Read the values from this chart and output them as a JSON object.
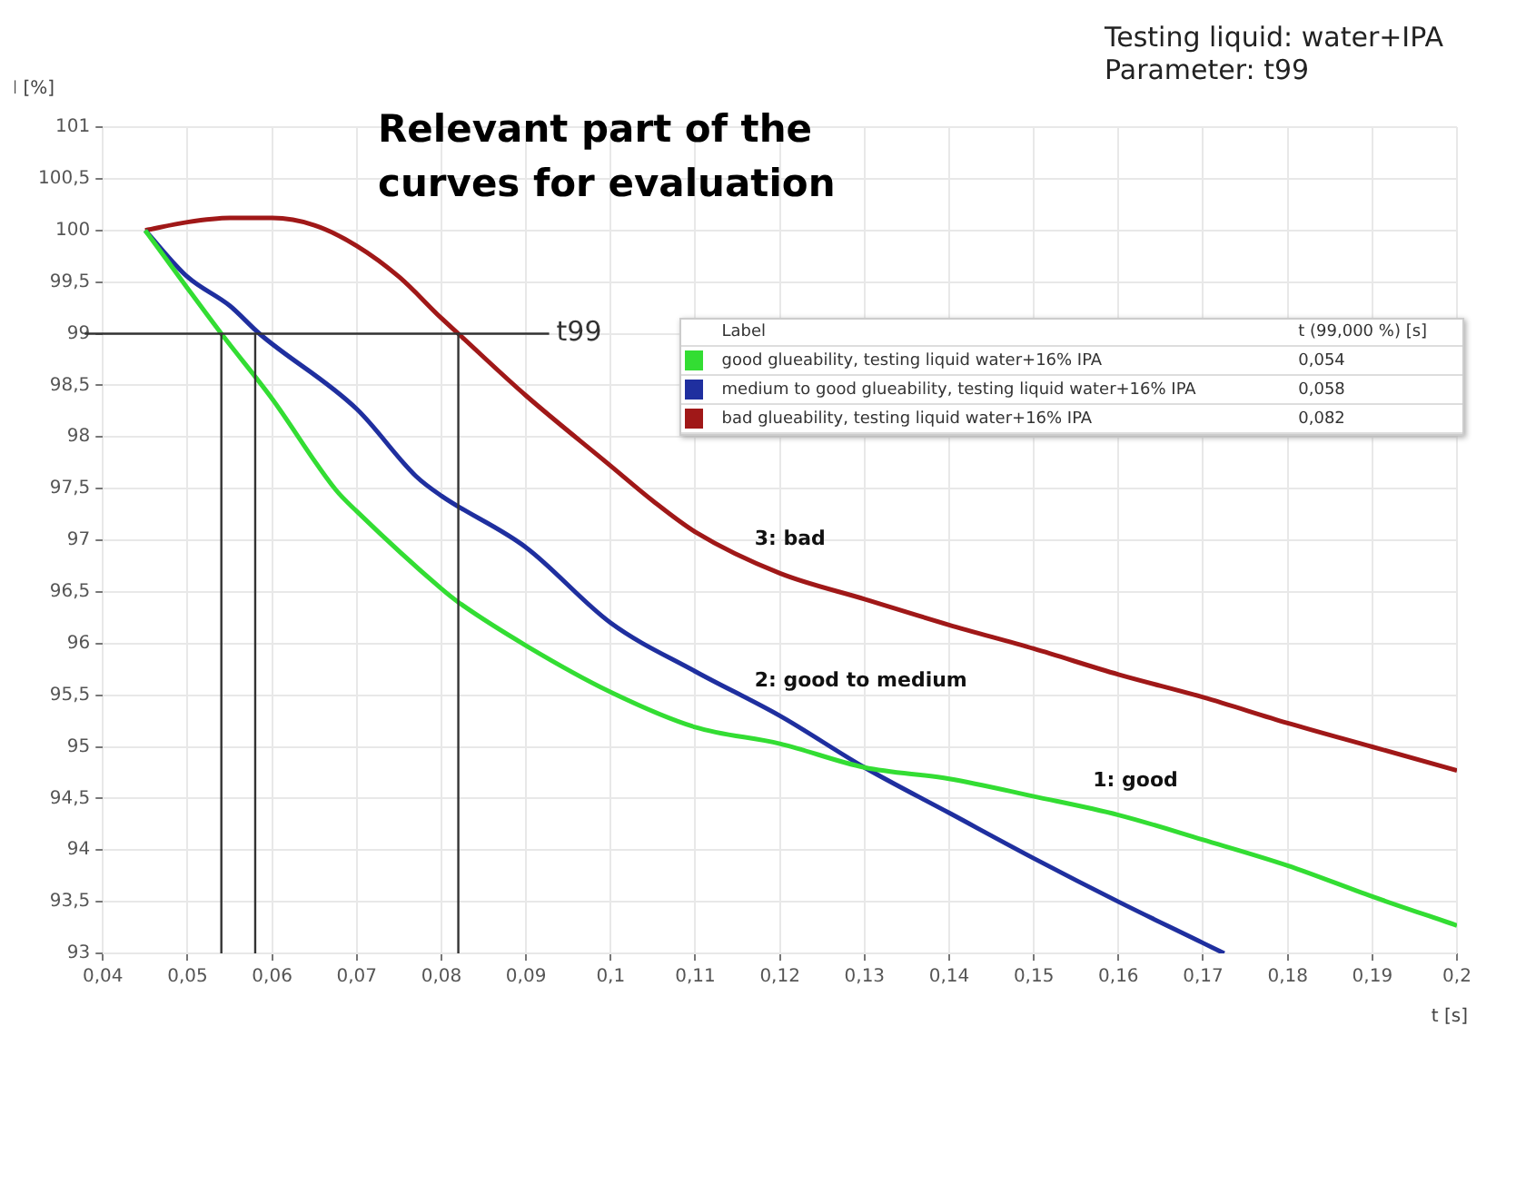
{
  "chart_data": {
    "type": "line",
    "title": "Relevant part of the curves for evaluation",
    "subtitle": "Testing liquid: water+IPA\nParameter: t99",
    "xlabel": "t [s]",
    "ylabel": "I [%]",
    "legend_title": "Label",
    "annotations": [
      "t (99,000 %) [s]",
      "0,054",
      "0,058",
      "0,082",
      "3: bad",
      "2: good to medium",
      "1: good"
    ],
    "series": [
      {
        "name": "good glueability, testing liquid water+16% IPA",
        "color": "#33dd33",
        "x": [
          0.045,
          0.05,
          0.054,
          0.06,
          0.0675,
          0.07,
          0.08,
          0.082,
          0.09,
          0.1,
          0.11,
          0.12,
          0.13,
          0.14,
          0.15,
          0.16,
          0.17,
          0.18,
          0.19,
          0.2
        ],
        "values": [
          100,
          99.44,
          99,
          98.37,
          97.49,
          97.28,
          96.53,
          96.4,
          95.98,
          95.53,
          95.19,
          95.03,
          94.8,
          94.69,
          94.52,
          94.34,
          94.1,
          93.85,
          93.55,
          93.27
        ]
      },
      {
        "name": "medium to good glueability, testing liquid water+16% IPA",
        "color": "#1f2f9f",
        "x": [
          0.045,
          0.05,
          0.055,
          0.0585,
          0.07,
          0.077,
          0.08,
          0.09,
          0.1,
          0.11,
          0.12,
          0.13,
          0.14,
          0.15,
          0.16,
          0.17,
          0.1725
        ],
        "values": [
          100,
          99.55,
          99.27,
          99.0,
          98.27,
          97.62,
          97.43,
          96.93,
          96.2,
          95.73,
          95.3,
          94.8,
          94.36,
          93.92,
          93.5,
          93.1,
          93.0
        ]
      },
      {
        "name": "bad glueability, testing liquid water+16% IPA",
        "color": "#a01818",
        "x": [
          0.045,
          0.05,
          0.055,
          0.06,
          0.065,
          0.07,
          0.075,
          0.08,
          0.082,
          0.09,
          0.1,
          0.105,
          0.11,
          0.12,
          0.13,
          0.14,
          0.15,
          0.16,
          0.17,
          0.18,
          0.19,
          0.2
        ],
        "values": [
          100,
          100.08,
          100.12,
          100.12,
          100.05,
          99.85,
          99.55,
          99.15,
          99.0,
          98.4,
          97.72,
          97.38,
          97.08,
          96.68,
          96.43,
          96.18,
          95.95,
          95.7,
          95.48,
          95.23,
          95.0,
          94.77
        ]
      }
    ],
    "ref_lines": [
      {
        "axis": "y",
        "value": 99,
        "label": "t99",
        "color": "#333333"
      },
      {
        "axis": "x",
        "value": 0.054,
        "color": "#333333"
      },
      {
        "axis": "x",
        "value": 0.058,
        "color": "#333333"
      },
      {
        "axis": "x",
        "value": 0.082,
        "color": "#333333"
      }
    ],
    "xlim": [
      0.04,
      0.2
    ],
    "xticks": [
      {
        "value": 0.04,
        "label": "0,04"
      },
      {
        "value": 0.05,
        "label": "0,05"
      },
      {
        "value": 0.06,
        "label": "0,06"
      },
      {
        "value": 0.07,
        "label": "0,07"
      },
      {
        "value": 0.08,
        "label": "0,08"
      },
      {
        "value": 0.09,
        "label": "0,09"
      },
      {
        "value": 0.1,
        "label": "0,1"
      },
      {
        "value": 0.11,
        "label": "0,11"
      },
      {
        "value": 0.12,
        "label": "0,12"
      },
      {
        "value": 0.13,
        "label": "0,13"
      },
      {
        "value": 0.14,
        "label": "0,14"
      },
      {
        "value": 0.15,
        "label": "0,15"
      },
      {
        "value": 0.16,
        "label": "0,16"
      },
      {
        "value": 0.17,
        "label": "0,17"
      },
      {
        "value": 0.18,
        "label": "0,18"
      },
      {
        "value": 0.19,
        "label": "0,19"
      },
      {
        "value": 0.2,
        "label": "0,2"
      }
    ],
    "ylim": [
      93,
      101
    ],
    "yticks": [
      93,
      {
        "value": 93.5,
        "label": "93,5"
      },
      94,
      {
        "value": 94.5,
        "label": "94,5"
      },
      95,
      {
        "value": 95.5,
        "label": "95,5"
      },
      96,
      {
        "value": 96.5,
        "label": "96,5"
      },
      97,
      {
        "value": 97.5,
        "label": "97,5"
      },
      98,
      {
        "value": 98.5,
        "label": "98,5"
      },
      99,
      {
        "value": 99.5,
        "label": "99,5"
      },
      100,
      {
        "value": 100.5,
        "label": "100,5"
      },
      101
    ],
    "grid": true,
    "legend": "top right",
    "marker": "none",
    "line_style": "solid"
  }
}
